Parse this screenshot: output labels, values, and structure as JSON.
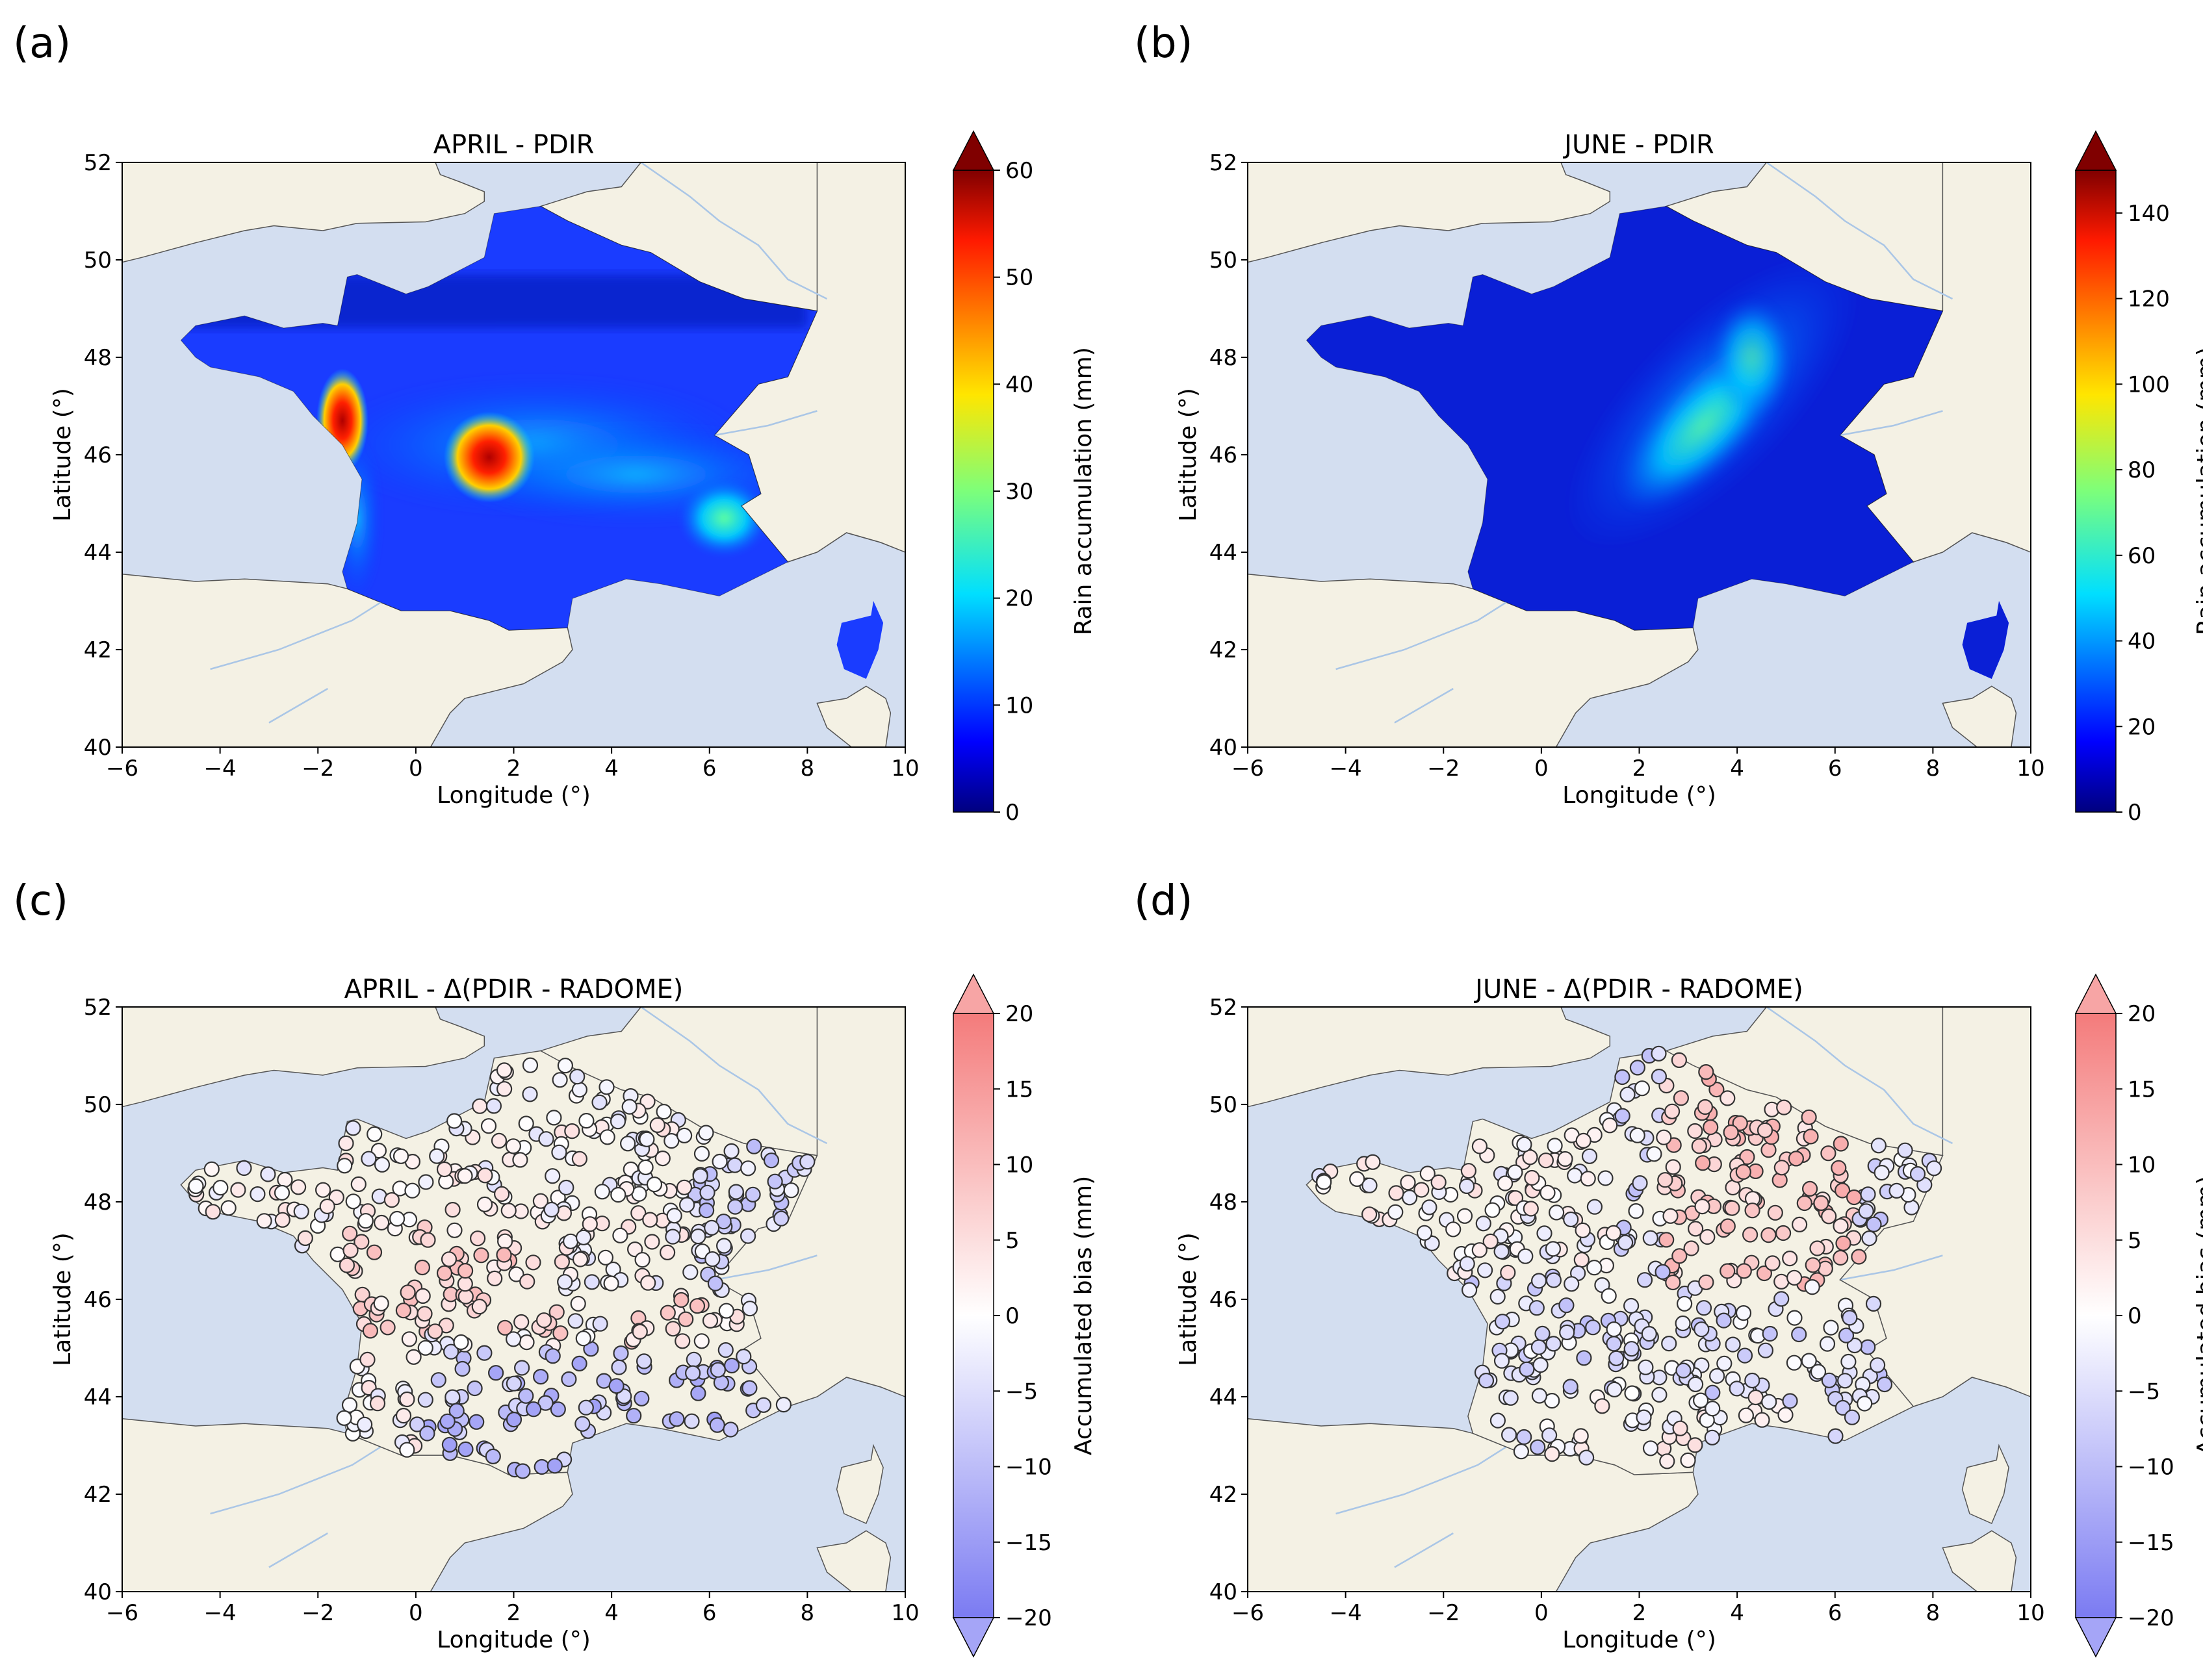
{
  "panels": [
    {
      "letter": "(a)",
      "title": "APRIL - PDIR",
      "kind": "raster",
      "colormap": "jet",
      "colorbar": {
        "label": "Rain accumulation (mm)",
        "min": 0,
        "max": 60,
        "ticks": [
          "0",
          "10",
          "20",
          "30",
          "40",
          "50",
          "60"
        ],
        "extend": "max"
      }
    },
    {
      "letter": "(b)",
      "title": "JUNE - PDIR",
      "kind": "raster",
      "colormap": "jet",
      "colorbar": {
        "label": "Rain accumulation (mm)",
        "min": 0,
        "max": 150,
        "ticks": [
          "0",
          "20",
          "40",
          "60",
          "80",
          "100",
          "120",
          "140"
        ],
        "extend": "max"
      }
    },
    {
      "letter": "(c)",
      "title": "APRIL - Δ(PDIR - RADOME)",
      "kind": "stations",
      "colormap": "bwr",
      "colorbar": {
        "label": "Accumulated bias (mm)",
        "min": -20,
        "max": 20,
        "ticks": [
          "−20",
          "−15",
          "−10",
          "−5",
          "0",
          "5",
          "10",
          "15",
          "20"
        ],
        "extend": "both"
      }
    },
    {
      "letter": "(d)",
      "title": "JUNE - Δ(PDIR - RADOME)",
      "kind": "stations",
      "colormap": "bwr",
      "colorbar": {
        "label": "Accumulated bias (mm)",
        "min": -20,
        "max": 20,
        "ticks": [
          "−20",
          "−15",
          "−10",
          "−5",
          "0",
          "5",
          "10",
          "15",
          "20"
        ],
        "extend": "both"
      }
    }
  ],
  "axes": {
    "xlabel": "Longitude (°)",
    "ylabel": "Latitude (°)",
    "xlim": [
      -6,
      10
    ],
    "ylim": [
      40,
      52
    ],
    "xticks": [
      "−6",
      "−4",
      "−2",
      "0",
      "2",
      "4",
      "6",
      "8",
      "10"
    ],
    "yticks": [
      "40",
      "42",
      "44",
      "46",
      "48",
      "50",
      "52"
    ]
  },
  "colors": {
    "sea": "#d3def0",
    "land": "#f4f1e4",
    "coast": "#555555",
    "river": "#aac6e6"
  }
}
